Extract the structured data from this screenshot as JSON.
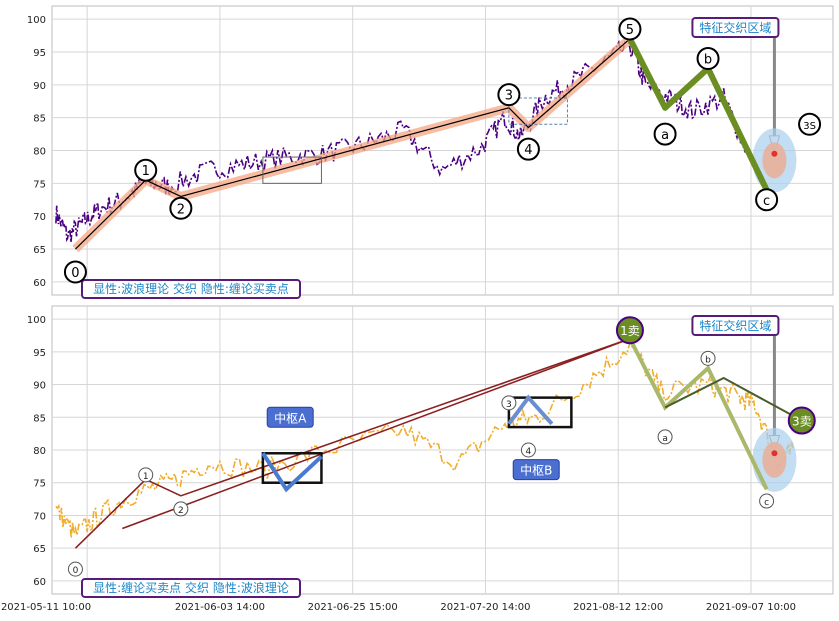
{
  "chart_data": [
    {
      "type": "line",
      "panel": "top",
      "ylim": [
        58,
        102
      ],
      "yticks": [
        60,
        65,
        70,
        75,
        80,
        85,
        90,
        95,
        100
      ],
      "grid": true,
      "legend_text": "显性:波浪理论 交织 隐性:缠论买卖点",
      "callout_text": "特征交织区域",
      "wave_labels": [
        {
          "text": "0",
          "x": 0.03,
          "y": 61.5
        },
        {
          "text": "1",
          "x": 0.12,
          "y": 77
        },
        {
          "text": "2",
          "x": 0.165,
          "y": 71.2
        },
        {
          "text": "3",
          "x": 0.585,
          "y": 88.5
        },
        {
          "text": "4",
          "x": 0.61,
          "y": 80.2
        },
        {
          "text": "5",
          "x": 0.74,
          "y": 98.5
        },
        {
          "text": "a",
          "x": 0.785,
          "y": 82.5
        },
        {
          "text": "b",
          "x": 0.84,
          "y": 94
        },
        {
          "text": "c",
          "x": 0.915,
          "y": 72.5
        },
        {
          "text": "3S",
          "x": 0.97,
          "y": 84
        }
      ],
      "series": [
        {
          "values_x": [
            0.005,
            0.02,
            0.04,
            0.06,
            0.09,
            0.12,
            0.15,
            0.2,
            0.25,
            0.3,
            0.35,
            0.4,
            0.45,
            0.5,
            0.55,
            0.58,
            0.6,
            0.63,
            0.66,
            0.7,
            0.74,
            0.76,
            0.79,
            0.82,
            0.86,
            0.89
          ],
          "values": [
            70.5,
            67,
            69,
            71,
            72.5,
            75,
            74.5,
            77,
            78,
            79,
            79.5,
            81,
            83,
            77,
            80.5,
            85,
            82,
            88,
            90,
            93,
            96,
            90,
            88,
            86,
            88,
            80
          ]
        },
        {
          "values_x": [
            0.03,
            0.12,
            0.165,
            0.585,
            0.61,
            0.74
          ],
          "values": [
            65,
            75.5,
            73,
            86.5,
            83.5,
            97
          ]
        },
        {
          "values_x": [
            0.74,
            0.785,
            0.84,
            0.915
          ],
          "values": [
            97,
            86.5,
            92.5,
            74
          ]
        }
      ]
    },
    {
      "type": "line",
      "panel": "bottom",
      "ylim": [
        58,
        102
      ],
      "yticks": [
        60,
        65,
        70,
        75,
        80,
        85,
        90,
        95,
        100
      ],
      "grid": true,
      "legend_text": "显性:缠论买卖点 交织 隐性:波浪理论",
      "callout_text": "特征交织区域",
      "zs_labels": [
        "中枢A",
        "中枢B"
      ],
      "point_labels": [
        {
          "text": "0",
          "x": 0.03,
          "y": 61.8
        },
        {
          "text": "1",
          "x": 0.12,
          "y": 76.2
        },
        {
          "text": "2",
          "x": 0.165,
          "y": 71
        },
        {
          "text": "3",
          "x": 0.585,
          "y": 87.2
        },
        {
          "text": "4",
          "x": 0.61,
          "y": 80
        },
        {
          "text": "b",
          "x": 0.84,
          "y": 94
        },
        {
          "text": "a",
          "x": 0.785,
          "y": 82
        },
        {
          "text": "c",
          "x": 0.915,
          "y": 72.2
        }
      ],
      "bs_points": [
        {
          "text": "1卖",
          "x": 0.74,
          "y": 98.3
        },
        {
          "text": "3卖",
          "x": 0.96,
          "y": 84.5
        }
      ],
      "series": [
        {
          "values_x": [
            0.005,
            0.03,
            0.06,
            0.1,
            0.15,
            0.2,
            0.27,
            0.35,
            0.45,
            0.52,
            0.58,
            0.62,
            0.68,
            0.74,
            0.78,
            0.84,
            0.88,
            0.9,
            0.93,
            0.95
          ],
          "values": [
            71,
            67,
            70,
            73,
            75,
            78,
            77,
            80,
            83,
            78,
            84,
            85,
            90,
            96,
            89,
            90,
            88,
            87,
            78,
            80
          ]
        }
      ],
      "xticks": [
        "2021-05-11 10:00",
        "2021-06-03 14:00",
        "2021-06-25 15:00",
        "2021-07-20 14:00",
        "2021-08-12 12:00",
        "2021-09-07 10:00"
      ]
    }
  ],
  "colors": {
    "price_top": "#4b0082",
    "price_bottom": "#f0ad2e",
    "wave_line": "#000000",
    "highlight": "#f4a582",
    "down_green": "#6b8e23",
    "callout_border": "#5a1a7a",
    "callout_text": "#1b86c8",
    "box_blue": "#3a6fd8"
  }
}
